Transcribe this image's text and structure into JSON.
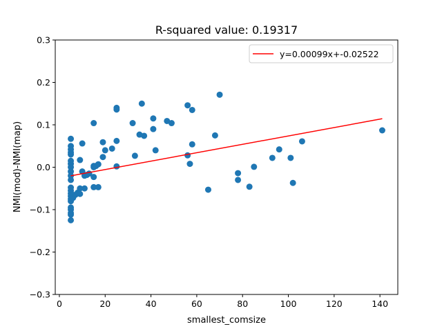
{
  "chart_data": {
    "type": "scatter",
    "title": "R-squared value: 0.19317",
    "xlabel": "smallest_comsize",
    "ylabel": "NMI(mod)-NMI(map)",
    "xlim": [
      -1.8,
      147.8
    ],
    "ylim": [
      -0.3,
      0.3
    ],
    "xticks": [
      0,
      20,
      40,
      60,
      80,
      100,
      120,
      140
    ],
    "yticks": [
      -0.3,
      -0.2,
      -0.1,
      0.0,
      0.1,
      0.2,
      0.3
    ],
    "ytick_labels": [
      "−0.3",
      "−0.2",
      "−0.1",
      "0.0",
      "0.1",
      "0.2",
      "0.3"
    ],
    "legend": {
      "label": "y=0.00099x+-0.02522",
      "position": "top-right"
    },
    "point_color": "#1f77b4",
    "fit_color": "#ff0000",
    "fit": {
      "slope": 0.00099,
      "intercept": -0.02522,
      "x_range": [
        5,
        141
      ]
    },
    "points": [
      [
        5,
        0.067
      ],
      [
        5,
        0.05
      ],
      [
        5,
        0.042
      ],
      [
        5,
        0.035
      ],
      [
        5,
        0.03
      ],
      [
        5,
        0.015
      ],
      [
        5,
        0.008
      ],
      [
        5,
        0.0
      ],
      [
        5,
        -0.01
      ],
      [
        5,
        -0.02
      ],
      [
        5,
        -0.03
      ],
      [
        5,
        -0.048
      ],
      [
        5,
        -0.055
      ],
      [
        5,
        -0.062
      ],
      [
        5,
        -0.068
      ],
      [
        5,
        -0.075
      ],
      [
        5,
        -0.08
      ],
      [
        5,
        -0.095
      ],
      [
        5,
        -0.1
      ],
      [
        5,
        -0.108
      ],
      [
        5,
        -0.112
      ],
      [
        5,
        -0.125
      ],
      [
        6,
        -0.065
      ],
      [
        6,
        -0.072
      ],
      [
        7,
        -0.065
      ],
      [
        8,
        -0.06
      ],
      [
        9,
        0.017
      ],
      [
        9,
        -0.05
      ],
      [
        9,
        -0.063
      ],
      [
        10,
        0.056
      ],
      [
        10,
        -0.01
      ],
      [
        11,
        -0.02
      ],
      [
        11,
        -0.05
      ],
      [
        12,
        -0.018
      ],
      [
        13,
        -0.015
      ],
      [
        15,
        0.104
      ],
      [
        15,
        0.003
      ],
      [
        15,
        0.0
      ],
      [
        15,
        -0.023
      ],
      [
        15,
        -0.047
      ],
      [
        16,
        0.003
      ],
      [
        17,
        0.007
      ],
      [
        17,
        -0.047
      ],
      [
        19,
        0.059
      ],
      [
        19,
        0.024
      ],
      [
        20,
        0.04
      ],
      [
        23,
        0.044
      ],
      [
        25,
        0.14
      ],
      [
        25,
        0.136
      ],
      [
        25,
        0.062
      ],
      [
        25,
        0.002
      ],
      [
        32,
        0.104
      ],
      [
        33,
        0.027
      ],
      [
        35,
        0.077
      ],
      [
        36,
        0.15
      ],
      [
        37,
        0.074
      ],
      [
        41,
        0.115
      ],
      [
        41,
        0.09
      ],
      [
        42,
        0.04
      ],
      [
        47,
        0.109
      ],
      [
        49,
        0.104
      ],
      [
        56,
        0.028
      ],
      [
        56,
        0.146
      ],
      [
        57,
        0.008
      ],
      [
        58,
        0.135
      ],
      [
        58,
        0.054
      ],
      [
        65,
        -0.053
      ],
      [
        68,
        0.075
      ],
      [
        70,
        0.171
      ],
      [
        78,
        -0.014
      ],
      [
        78,
        -0.03
      ],
      [
        83,
        -0.046
      ],
      [
        85,
        0.001
      ],
      [
        93,
        0.022
      ],
      [
        96,
        0.042
      ],
      [
        101,
        0.022
      ],
      [
        102,
        -0.037
      ],
      [
        106,
        0.061
      ],
      [
        141,
        0.087
      ]
    ]
  }
}
